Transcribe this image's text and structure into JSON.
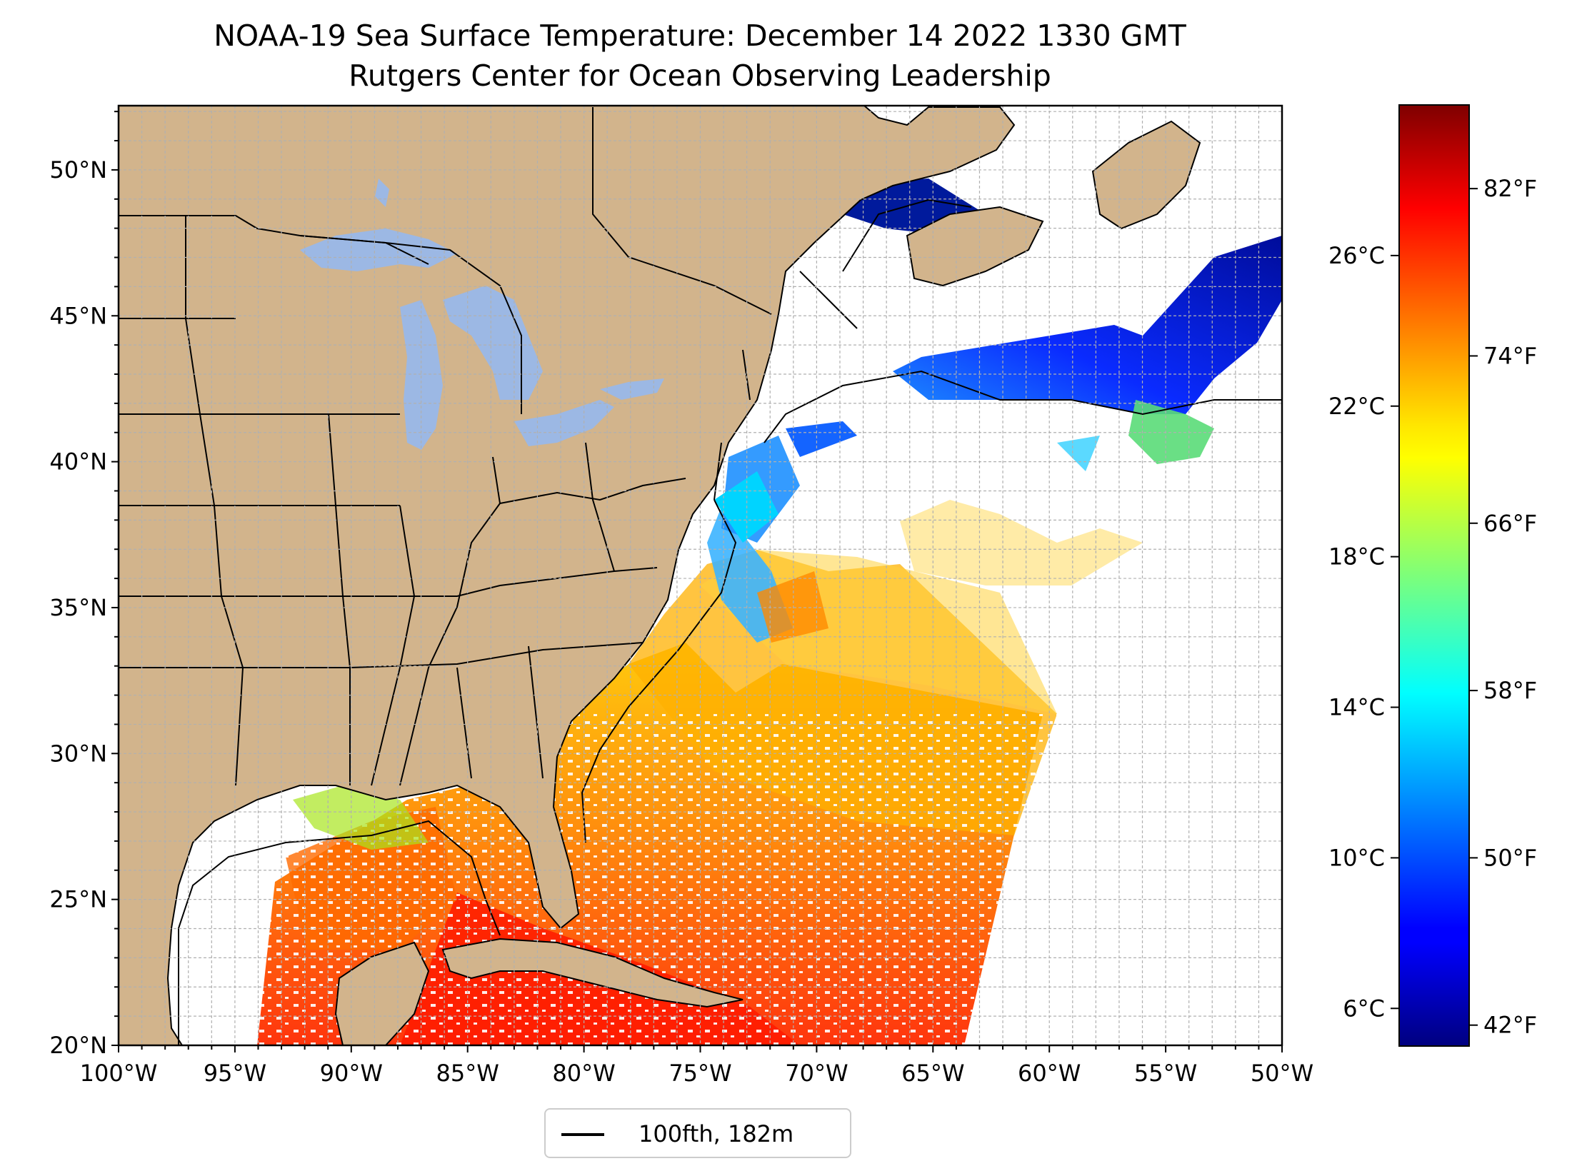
{
  "title": {
    "line1": "NOAA-19 Sea Surface Temperature: December 14 2022 1330 GMT",
    "line2": "Rutgers Center for Ocean Observing Leadership"
  },
  "map": {
    "lon_range": [
      -100,
      -50
    ],
    "lat_range": [
      20,
      52.2
    ],
    "lat_ticks": [
      {
        "value": 50,
        "label": "50°N"
      },
      {
        "value": 45,
        "label": "45°N"
      },
      {
        "value": 40,
        "label": "40°N"
      },
      {
        "value": 35,
        "label": "35°N"
      },
      {
        "value": 30,
        "label": "30°N"
      },
      {
        "value": 25,
        "label": "25°N"
      },
      {
        "value": 20,
        "label": "20°N"
      }
    ],
    "lon_ticks": [
      {
        "value": -100,
        "label": "100°W"
      },
      {
        "value": -95,
        "label": "95°W"
      },
      {
        "value": -90,
        "label": "90°W"
      },
      {
        "value": -85,
        "label": "85°W"
      },
      {
        "value": -80,
        "label": "80°W"
      },
      {
        "value": -75,
        "label": "75°W"
      },
      {
        "value": -70,
        "label": "70°W"
      },
      {
        "value": -65,
        "label": "65°W"
      },
      {
        "value": -60,
        "label": "60°W"
      },
      {
        "value": -55,
        "label": "55°W"
      },
      {
        "value": -50,
        "label": "50°W"
      }
    ],
    "grid": true,
    "colors": {
      "land": "#d2b48c",
      "lakes": "#9cb8e4",
      "borders": "#000000",
      "grid": "#b0b0b0"
    }
  },
  "colorbar": {
    "colormap": "jet",
    "range_c": [
      5,
      30
    ],
    "celsius_ticks": [
      {
        "value": 26,
        "label": "26°C"
      },
      {
        "value": 22,
        "label": "22°C"
      },
      {
        "value": 18,
        "label": "18°C"
      },
      {
        "value": 14,
        "label": "14°C"
      },
      {
        "value": 10,
        "label": "10°C"
      },
      {
        "value": 6,
        "label": "6°C"
      }
    ],
    "fahrenheit_ticks": [
      {
        "value": 82,
        "label": "82°F"
      },
      {
        "value": 74,
        "label": "74°F"
      },
      {
        "value": 66,
        "label": "66°F"
      },
      {
        "value": 58,
        "label": "58°F"
      },
      {
        "value": 50,
        "label": "50°F"
      },
      {
        "value": 42,
        "label": "42°F"
      }
    ]
  },
  "legend": {
    "label": "100fth, 182m",
    "line_color": "#000000"
  }
}
